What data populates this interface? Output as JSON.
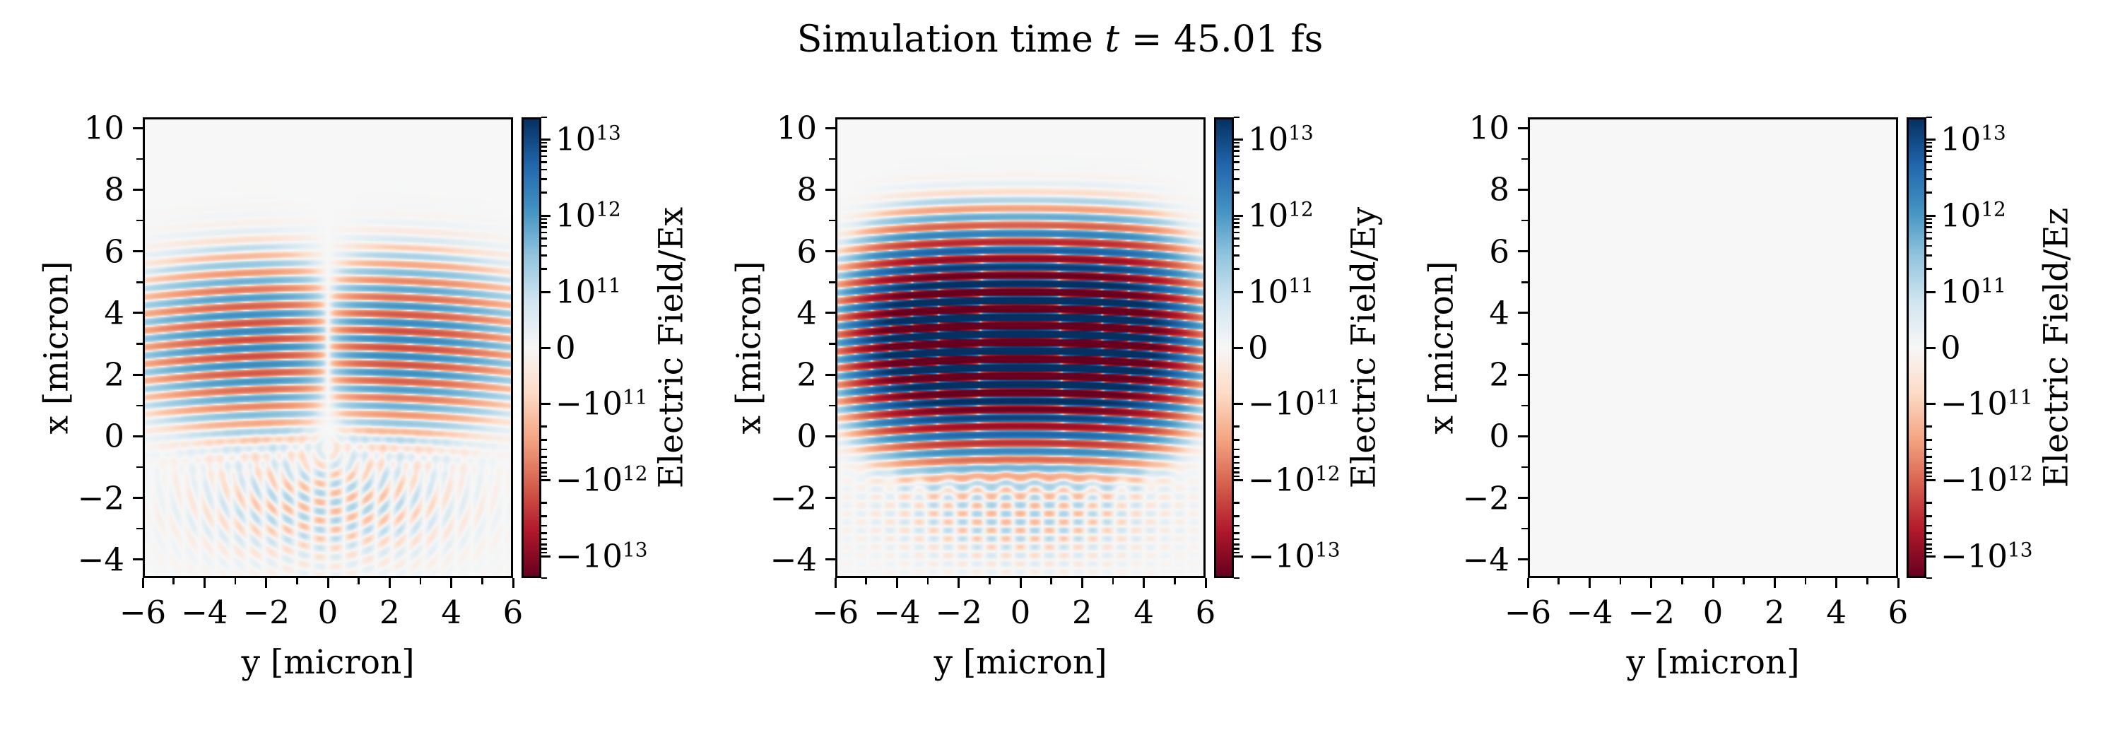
{
  "title": {
    "prefix": "Simulation time ",
    "variable": "t",
    "suffix": " = 45.01 fs"
  },
  "colors": {
    "figure_background": "#ffffff",
    "axes_background": "#f7f7f7",
    "spine": "#000000",
    "tick": "#000000",
    "text": "#000000",
    "positive_extreme": "#053061",
    "negative_extreme": "#67001f"
  },
  "colormap": {
    "name": "RdBu",
    "stops": [
      "#67001f",
      "#b2182b",
      "#d6604d",
      "#f4a582",
      "#fddbc7",
      "#f7f7f7",
      "#d1e5f0",
      "#92c5de",
      "#4393c3",
      "#2166ac",
      "#053061"
    ]
  },
  "colorbar_scale": {
    "type": "symlog",
    "linthresh": 100000000000.0,
    "vmax": 20000000000000.0
  },
  "chart_data": [
    {
      "type": "heatmap",
      "field": "Ex",
      "xlabel": "y [micron]",
      "ylabel": "x [micron]",
      "colorbar_label": "Electric Field/Ex",
      "xlim": [
        -6,
        6
      ],
      "ylim": [
        -4.6,
        10.35
      ],
      "xtick_values": [
        -6,
        -4,
        -2,
        0,
        2,
        4,
        6
      ],
      "xtick_labels": [
        "−6",
        "−4",
        "−2",
        "0",
        "2",
        "4",
        "6"
      ],
      "xminor_values": [
        -5,
        -3,
        -1,
        1,
        3,
        5
      ],
      "ytick_values": [
        10,
        8,
        6,
        4,
        2,
        0,
        -2,
        -4
      ],
      "ytick_labels": [
        "10",
        "8",
        "6",
        "4",
        "2",
        "0",
        "−2",
        "−4"
      ],
      "yminor_values": [
        9,
        7,
        5,
        3,
        1,
        -1,
        -3
      ],
      "colorbar_ticks": [
        {
          "sign": "",
          "mantissa": "10",
          "exponent": "13",
          "value": 10000000000000.0
        },
        {
          "sign": "",
          "mantissa": "10",
          "exponent": "12",
          "value": 1000000000000.0
        },
        {
          "sign": "",
          "mantissa": "10",
          "exponent": "11",
          "value": 100000000000.0
        },
        {
          "sign": "",
          "mantissa": "0",
          "exponent": "",
          "value": 0
        },
        {
          "sign": "−",
          "mantissa": "10",
          "exponent": "11",
          "value": -100000000000.0
        },
        {
          "sign": "−",
          "mantissa": "10",
          "exponent": "12",
          "value": -1000000000000.0
        },
        {
          "sign": "−",
          "mantissa": "10",
          "exponent": "13",
          "value": -10000000000000.0
        }
      ],
      "model": {
        "kind": "longitudinal",
        "amplitude": 2500000000000.0,
        "wavelength": 0.55,
        "phase_origin": 0.3,
        "curvature_2R": 120,
        "center_x": 3.0,
        "sigma_x": 1.9,
        "y_linear_scale": 2.2,
        "y_sigma": 3.6,
        "y_power": 2.2,
        "scatter": {
          "kind": "rings",
          "amplitude": 180000000000.0,
          "center_x": -2.3,
          "sigma_x": 1.7,
          "sigma_y": 4.0,
          "ring_origin_x": -0.4,
          "ring_wavelength": 0.6,
          "mod_wavelength": 1.05
        }
      }
    },
    {
      "type": "heatmap",
      "field": "Ey",
      "xlabel": "y [micron]",
      "ylabel": "x [micron]",
      "colorbar_label": "Electric Field/Ey",
      "xlim": [
        -6,
        6
      ],
      "ylim": [
        -4.6,
        10.35
      ],
      "xtick_values": [
        -6,
        -4,
        -2,
        0,
        2,
        4,
        6
      ],
      "xtick_labels": [
        "−6",
        "−4",
        "−2",
        "0",
        "2",
        "4",
        "6"
      ],
      "xminor_values": [
        -5,
        -3,
        -1,
        1,
        3,
        5
      ],
      "ytick_values": [
        10,
        8,
        6,
        4,
        2,
        0,
        -2,
        -4
      ],
      "ytick_labels": [
        "10",
        "8",
        "6",
        "4",
        "2",
        "0",
        "−2",
        "−4"
      ],
      "yminor_values": [
        9,
        7,
        5,
        3,
        1,
        -1,
        -3
      ],
      "colorbar_ticks": [
        {
          "sign": "",
          "mantissa": "10",
          "exponent": "13",
          "value": 10000000000000.0
        },
        {
          "sign": "",
          "mantissa": "10",
          "exponent": "12",
          "value": 1000000000000.0
        },
        {
          "sign": "",
          "mantissa": "10",
          "exponent": "11",
          "value": 100000000000.0
        },
        {
          "sign": "",
          "mantissa": "0",
          "exponent": "",
          "value": 0
        },
        {
          "sign": "−",
          "mantissa": "10",
          "exponent": "11",
          "value": -100000000000.0
        },
        {
          "sign": "−",
          "mantissa": "10",
          "exponent": "12",
          "value": -1000000000000.0
        },
        {
          "sign": "−",
          "mantissa": "10",
          "exponent": "13",
          "value": -10000000000000.0
        }
      ],
      "model": {
        "kind": "transverse",
        "amplitude": 80000000000000.0,
        "wavelength": 0.55,
        "phase_origin": 0.3,
        "curvature_2R": 120,
        "center_x": 3.1,
        "sigma_x": 1.85,
        "y_sigma": 4.1,
        "y_power": 4,
        "scatter": {
          "kind": "grid",
          "amplitude": 200000000000.0,
          "center_x": -2.5,
          "sigma_x": 1.5,
          "sigma_y": 4.0,
          "wavelength_x": 0.55,
          "phase": 1.0,
          "wavelength_y": 0.95
        }
      }
    },
    {
      "type": "heatmap",
      "field": "Ez",
      "xlabel": "y [micron]",
      "ylabel": "x [micron]",
      "colorbar_label": "Electric Field/Ez",
      "xlim": [
        -6,
        6
      ],
      "ylim": [
        -4.6,
        10.35
      ],
      "xtick_values": [
        -6,
        -4,
        -2,
        0,
        2,
        4,
        6
      ],
      "xtick_labels": [
        "−6",
        "−4",
        "−2",
        "0",
        "2",
        "4",
        "6"
      ],
      "xminor_values": [
        -5,
        -3,
        -1,
        1,
        3,
        5
      ],
      "ytick_values": [
        10,
        8,
        6,
        4,
        2,
        0,
        -2,
        -4
      ],
      "ytick_labels": [
        "10",
        "8",
        "6",
        "4",
        "2",
        "0",
        "−2",
        "−4"
      ],
      "yminor_values": [
        9,
        7,
        5,
        3,
        1,
        -1,
        -3
      ],
      "colorbar_ticks": [
        {
          "sign": "",
          "mantissa": "10",
          "exponent": "13",
          "value": 10000000000000.0
        },
        {
          "sign": "",
          "mantissa": "10",
          "exponent": "12",
          "value": 1000000000000.0
        },
        {
          "sign": "",
          "mantissa": "10",
          "exponent": "11",
          "value": 100000000000.0
        },
        {
          "sign": "",
          "mantissa": "0",
          "exponent": "",
          "value": 0
        },
        {
          "sign": "−",
          "mantissa": "10",
          "exponent": "11",
          "value": -100000000000.0
        },
        {
          "sign": "−",
          "mantissa": "10",
          "exponent": "12",
          "value": -1000000000000.0
        },
        {
          "sign": "−",
          "mantissa": "10",
          "exponent": "13",
          "value": -10000000000000.0
        }
      ],
      "model": {
        "kind": "zero",
        "amplitude": 0
      }
    }
  ]
}
